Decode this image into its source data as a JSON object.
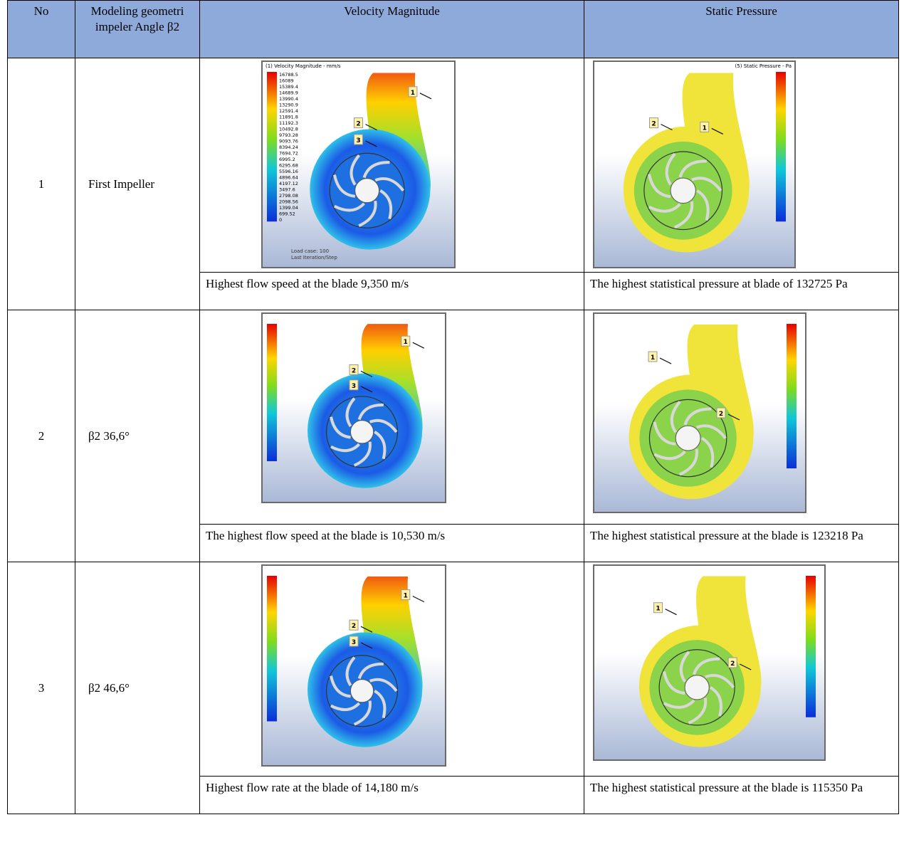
{
  "header": {
    "cells": [
      "No",
      "Modeling geometri impeler Angle β2",
      "Velocity Magnitude",
      "Static Pressure"
    ]
  },
  "rows": [
    {
      "no": "1",
      "model": "First Impeller",
      "velocity_image": {
        "title": "(1) Velocity Magnitude - mm/s",
        "legend": [
          "16788.5",
          "16089",
          "15389.4",
          "14689.9",
          "13990.4",
          "13290.9",
          "12591.4",
          "11891.8",
          "11192.3",
          "10492.8",
          "9793.28",
          "9093.76",
          "8394.24",
          "7694.72",
          "6995.2",
          "6295.68",
          "5596.16",
          "4896.64",
          "4197.12",
          "3497.6",
          "2798.08",
          "2098.56",
          "1399.04",
          "699.52",
          "0"
        ],
        "footer": [
          "Load case: 100",
          "Last Iteration/Step"
        ],
        "markers": [
          "1",
          "2",
          "3"
        ]
      },
      "pressure_image": {
        "title": "(5) Static Pressure - Pa",
        "markers": [
          "2",
          "1"
        ]
      },
      "velocity_text": "Highest flow speed at the blade 9,350 m/s",
      "pressure_text": "The highest statistical pressure at blade of 132725 Pa"
    },
    {
      "no": "2",
      "model": "β2 36,6°",
      "velocity_image": {
        "markers": [
          "1",
          "2",
          "3"
        ]
      },
      "pressure_image": {
        "markers": [
          "1",
          "2"
        ]
      },
      "velocity_text": "The highest flow speed at the blade is 10,530 m/s",
      "pressure_text": "The highest statistical pressure at the blade is 123218 Pa"
    },
    {
      "no": "3",
      "model": "β2 46,6°",
      "velocity_image": {
        "markers": [
          "1",
          "2",
          "3"
        ]
      },
      "pressure_image": {
        "markers": [
          "1",
          "2"
        ]
      },
      "velocity_text": "Highest flow rate at the blade of 14,180 m/s",
      "pressure_text": "The highest statistical pressure at the blade is 115350 Pa"
    }
  ]
}
